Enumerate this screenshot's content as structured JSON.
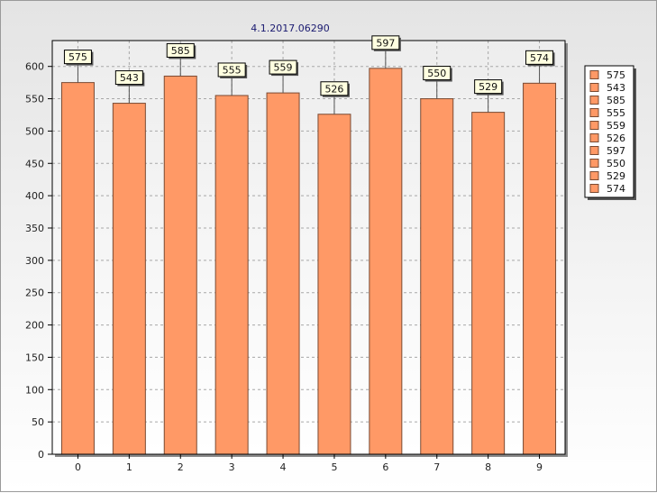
{
  "chart_data": {
    "type": "bar",
    "title": "4.1.2017.06290",
    "categories": [
      "0",
      "1",
      "2",
      "3",
      "4",
      "5",
      "6",
      "7",
      "8",
      "9"
    ],
    "values": [
      575,
      543,
      585,
      555,
      559,
      526,
      597,
      550,
      529,
      574
    ],
    "ylim": [
      0,
      640
    ],
    "yticks": [
      0,
      50,
      100,
      150,
      200,
      250,
      300,
      350,
      400,
      450,
      500,
      550,
      600
    ],
    "xlabel": "",
    "ylabel": "",
    "grid": true,
    "data_labels": true,
    "legend": {
      "placement": "right",
      "entries": [
        "575",
        "543",
        "585",
        "555",
        "559",
        "526",
        "597",
        "550",
        "529",
        "574"
      ]
    },
    "colors": {
      "bar_fill": "#ff9966",
      "bar_stroke": "#7a4a32",
      "grid": "#a8a8a8",
      "label_bg": "#ffffe0",
      "title": "#1a1a70"
    }
  }
}
